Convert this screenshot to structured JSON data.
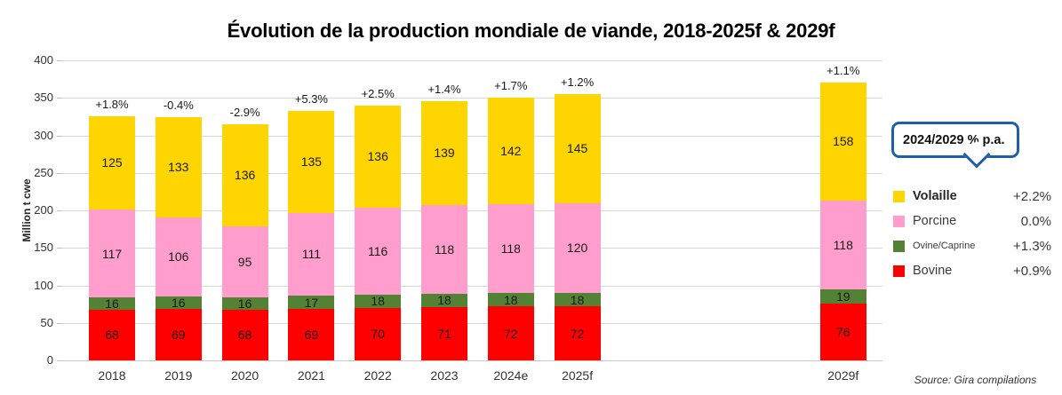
{
  "title": "Évolution de la production mondiale de viande, 2018-2025f & 2029f",
  "chart_data": {
    "type": "bar",
    "stacked": true,
    "title": "Évolution de la production mondiale de viande, 2018-2025f & 2029f",
    "ylabel": "Million t cwe",
    "xlabel": "",
    "ylim": [
      0,
      400
    ],
    "yticks": [
      0,
      50,
      100,
      150,
      200,
      250,
      300,
      350,
      400
    ],
    "gridlines": true,
    "categories": [
      "2018",
      "2019",
      "2020",
      "2021",
      "2022",
      "2023",
      "2024e",
      "2025f",
      "2029f"
    ],
    "series": [
      {
        "name": "Bovine",
        "color": "#ff0000",
        "values": [
          68,
          69,
          68,
          69,
          70,
          71,
          72,
          72,
          76
        ]
      },
      {
        "name": "Ovine/Caprine",
        "color": "#548235",
        "values": [
          16,
          16,
          16,
          17,
          18,
          18,
          18,
          18,
          19
        ]
      },
      {
        "name": "Porcine",
        "color": "#ff9ecd",
        "values": [
          117,
          106,
          95,
          111,
          116,
          118,
          118,
          120,
          118
        ]
      },
      {
        "name": "Volaille",
        "color": "#ffd500",
        "values": [
          125,
          133,
          136,
          135,
          136,
          139,
          142,
          145,
          158
        ]
      }
    ],
    "growth_labels": [
      "+1.8%",
      "-0.4%",
      "-2.9%",
      "+5.3%",
      "+2.5%",
      "+1.4%",
      "+1.7%",
      "+1.2%",
      "+1.1%"
    ],
    "legend_position": "right"
  },
  "legend": {
    "callout_title": "2024/2029 % p.a.",
    "items": [
      {
        "label": "Volaille",
        "color": "#ffd500",
        "value": "+2.2%",
        "bold": true,
        "small": false
      },
      {
        "label": "Porcine",
        "color": "#ff9ecd",
        "value": "0.0%",
        "bold": false,
        "small": false
      },
      {
        "label": "Ovine/Caprine",
        "color": "#548235",
        "value": "+1.3%",
        "bold": false,
        "small": true
      },
      {
        "label": "Bovine",
        "color": "#ff0000",
        "value": "+0.9%",
        "bold": false,
        "small": false
      }
    ]
  },
  "source": "Source: Gira compilations",
  "colors": {
    "callout_border": "#1f5fa9",
    "grid": "#d9d9d9",
    "bovine": "#ff0000",
    "ovine_caprine": "#548235",
    "porcine": "#ff9ecd",
    "volaille": "#ffd500"
  }
}
